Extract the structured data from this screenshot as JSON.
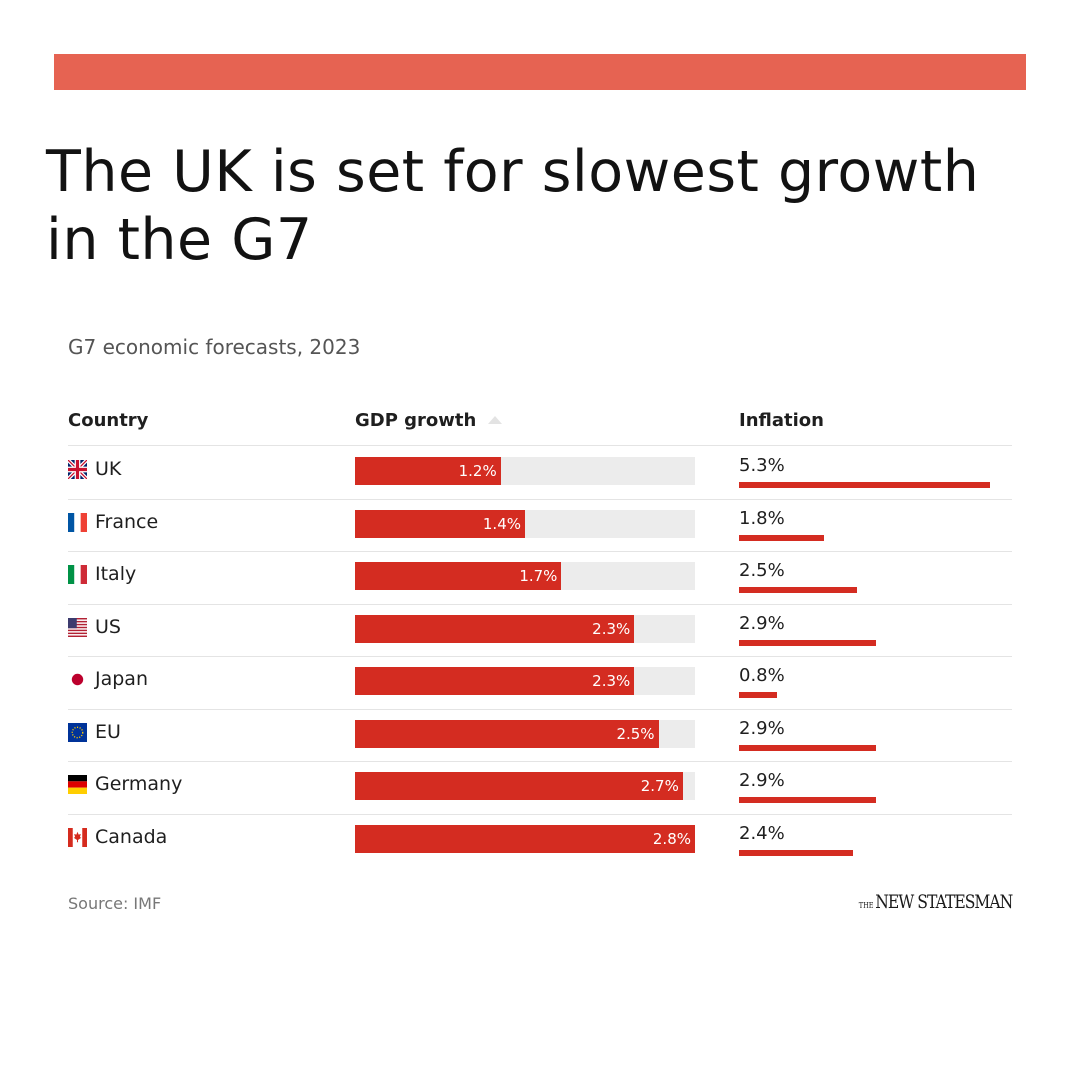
{
  "headline": "The UK is set for slowest growth in the G7",
  "subtitle": "G7 economic forecasts, 2023",
  "columns": {
    "country": "Country",
    "gdp": "GDP growth",
    "inflation": "Inflation"
  },
  "source": "Source: IMF",
  "logo": {
    "prefix": "THE",
    "name": "NEW STATESMAN"
  },
  "colors": {
    "accent_bar": "#e66352",
    "bar": "#d42c21",
    "track": "#ececec"
  },
  "chart_data": {
    "type": "table",
    "title": "The UK is set for slowest growth in the G7",
    "subtitle": "G7 economic forecasts, 2023",
    "gdp_axis_max": 2.8,
    "inflation_axis_max": 5.3,
    "rows": [
      {
        "country": "UK",
        "flag": "uk-flag",
        "gdp": 1.2,
        "gdp_label": "1.2%",
        "inflation": 5.3,
        "inflation_label": "5.3%"
      },
      {
        "country": "France",
        "flag": "france-flag",
        "gdp": 1.4,
        "gdp_label": "1.4%",
        "inflation": 1.8,
        "inflation_label": "1.8%"
      },
      {
        "country": "Italy",
        "flag": "italy-flag",
        "gdp": 1.7,
        "gdp_label": "1.7%",
        "inflation": 2.5,
        "inflation_label": "2.5%"
      },
      {
        "country": "US",
        "flag": "us-flag",
        "gdp": 2.3,
        "gdp_label": "2.3%",
        "inflation": 2.9,
        "inflation_label": "2.9%"
      },
      {
        "country": "Japan",
        "flag": "japan-flag",
        "gdp": 2.3,
        "gdp_label": "2.3%",
        "inflation": 0.8,
        "inflation_label": "0.8%"
      },
      {
        "country": "EU",
        "flag": "eu-flag",
        "gdp": 2.5,
        "gdp_label": "2.5%",
        "inflation": 2.9,
        "inflation_label": "2.9%"
      },
      {
        "country": "Germany",
        "flag": "germany-flag",
        "gdp": 2.7,
        "gdp_label": "2.7%",
        "inflation": 2.9,
        "inflation_label": "2.9%"
      },
      {
        "country": "Canada",
        "flag": "canada-flag",
        "gdp": 2.8,
        "gdp_label": "2.8%",
        "inflation": 2.4,
        "inflation_label": "2.4%"
      }
    ]
  }
}
